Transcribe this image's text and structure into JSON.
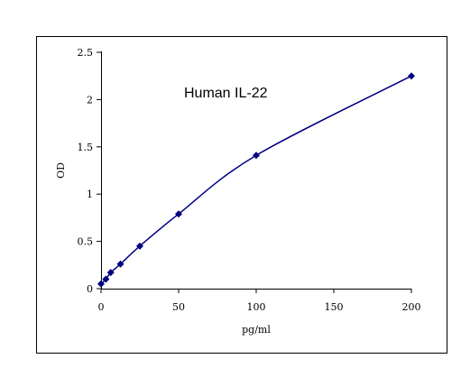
{
  "chart_data": {
    "type": "line",
    "title": "Human IL-22",
    "xlabel": "pg/ml",
    "ylabel": "OD",
    "xlim": [
      0,
      200
    ],
    "ylim": [
      0,
      2.5
    ],
    "x_ticks": [
      "0",
      "50",
      "100",
      "150",
      "200"
    ],
    "y_ticks": [
      "0",
      "0.5",
      "1",
      "1.5",
      "2",
      "2.5"
    ],
    "grid": false,
    "legend": "none",
    "series": [
      {
        "x": [
          0,
          3.125,
          6.25,
          12.5,
          25,
          50,
          100,
          200
        ],
        "y": [
          0.05,
          0.1,
          0.17,
          0.26,
          0.45,
          0.79,
          1.41,
          2.25
        ],
        "color": "#000080",
        "marker": "diamond"
      }
    ]
  }
}
